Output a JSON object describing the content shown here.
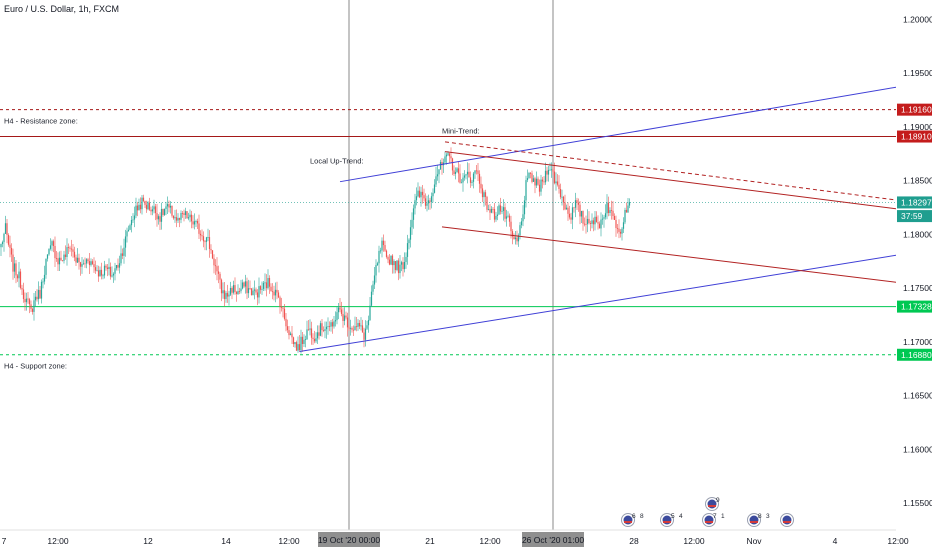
{
  "title": "Euro / U.S. Dollar, 1h, FXCM",
  "currency": "USD",
  "colors": {
    "up": "#26a69a",
    "down": "#ef5350",
    "blue": "#3f3fd6",
    "red": "#b22222",
    "green": "#00c853",
    "hline_red": "#a51818",
    "tag_red": "#c41c1c",
    "tag_teal": "#1f9e8f"
  },
  "chart_data": {
    "type": "candlestick",
    "symbol": "EURUSD",
    "timeframe": "1h",
    "ylim": [
      1.1525,
      1.2018
    ],
    "y_ticks": [
      1.2,
      1.195,
      1.19,
      1.185,
      1.18,
      1.175,
      1.17,
      1.165,
      1.16,
      1.155
    ],
    "y_tick_labels": [
      "1.20000",
      "1.19500",
      "1.19000",
      "1.18500",
      "1.18000",
      "1.17500",
      "1.17000",
      "1.16500",
      "1.16000",
      "1.15500"
    ],
    "x_ticks": [
      {
        "label": "7",
        "bar": 2
      },
      {
        "label": "12:00",
        "bar": 38
      },
      {
        "label": "12",
        "bar": 98
      },
      {
        "label": "14",
        "bar": 150
      },
      {
        "label": "12:00",
        "bar": 192
      },
      {
        "label": "21",
        "bar": 286
      },
      {
        "label": "12:00",
        "bar": 326
      },
      {
        "label": "28",
        "bar": 422
      },
      {
        "label": "12:00",
        "bar": 462
      },
      {
        "label": "Nov",
        "bar": 502
      },
      {
        "label": "4",
        "bar": 556
      },
      {
        "label": "12:00",
        "bar": 598
      }
    ],
    "x_highlight": [
      {
        "label": "19 Oct '20  00:00",
        "bar": 232
      },
      {
        "label": "26 Oct '20  01:00",
        "bar": 368
      }
    ],
    "anchors": [
      [
        0,
        1.179
      ],
      [
        3,
        1.1805
      ],
      [
        5,
        1.179
      ],
      [
        8,
        1.177
      ],
      [
        12,
        1.176
      ],
      [
        15,
        1.1745
      ],
      [
        18,
        1.1735
      ],
      [
        20,
        1.1728
      ],
      [
        23,
        1.1742
      ],
      [
        26,
        1.1745
      ],
      [
        30,
        1.1775
      ],
      [
        34,
        1.179
      ],
      [
        38,
        1.1776
      ],
      [
        42,
        1.1778
      ],
      [
        46,
        1.179
      ],
      [
        50,
        1.1776
      ],
      [
        54,
        1.177
      ],
      [
        58,
        1.1778
      ],
      [
        62,
        1.177
      ],
      [
        66,
        1.1764
      ],
      [
        70,
        1.1768
      ],
      [
        74,
        1.1762
      ],
      [
        78,
        1.1772
      ],
      [
        82,
        1.179
      ],
      [
        86,
        1.181
      ],
      [
        90,
        1.1823
      ],
      [
        94,
        1.183
      ],
      [
        98,
        1.1826
      ],
      [
        102,
        1.1823
      ],
      [
        106,
        1.1816
      ],
      [
        110,
        1.1825
      ],
      [
        114,
        1.182
      ],
      [
        118,
        1.1812
      ],
      [
        122,
        1.1818
      ],
      [
        126,
        1.1814
      ],
      [
        130,
        1.1808
      ],
      [
        134,
        1.18
      ],
      [
        138,
        1.1794
      ],
      [
        141,
        1.178
      ],
      [
        144,
        1.1764
      ],
      [
        147,
        1.1748
      ],
      [
        150,
        1.1742
      ],
      [
        154,
        1.175
      ],
      [
        158,
        1.1746
      ],
      [
        162,
        1.1752
      ],
      [
        166,
        1.1748
      ],
      [
        170,
        1.1745
      ],
      [
        174,
        1.175
      ],
      [
        178,
        1.1755
      ],
      [
        182,
        1.1748
      ],
      [
        186,
        1.1738
      ],
      [
        189,
        1.1722
      ],
      [
        192,
        1.171
      ],
      [
        195,
        1.17
      ],
      [
        198,
        1.1694
      ],
      [
        201,
        1.1702
      ],
      [
        205,
        1.1712
      ],
      [
        209,
        1.1706
      ],
      [
        213,
        1.1712
      ],
      [
        217,
        1.1716
      ],
      [
        221,
        1.1712
      ],
      [
        224,
        1.173
      ],
      [
        227,
        1.1726
      ],
      [
        230,
        1.172
      ],
      [
        233,
        1.1715
      ],
      [
        236,
        1.1713
      ],
      [
        239,
        1.1714
      ],
      [
        242,
        1.1706
      ],
      [
        245,
        1.172
      ],
      [
        248,
        1.1752
      ],
      [
        251,
        1.1775
      ],
      [
        254,
        1.179
      ],
      [
        257,
        1.1775
      ],
      [
        260,
        1.1778
      ],
      [
        263,
        1.1772
      ],
      [
        266,
        1.1768
      ],
      [
        269,
        1.1775
      ],
      [
        272,
        1.18
      ],
      [
        275,
        1.1825
      ],
      [
        278,
        1.1836
      ],
      [
        281,
        1.1836
      ],
      [
        284,
        1.1828
      ],
      [
        287,
        1.1838
      ],
      [
        290,
        1.1856
      ],
      [
        293,
        1.1862
      ],
      [
        296,
        1.1868
      ],
      [
        299,
        1.1872
      ],
      [
        302,
        1.186
      ],
      [
        305,
        1.1855
      ],
      [
        308,
        1.185
      ],
      [
        311,
        1.1855
      ],
      [
        314,
        1.1852
      ],
      [
        317,
        1.186
      ],
      [
        320,
        1.1845
      ],
      [
        323,
        1.183
      ],
      [
        326,
        1.1822
      ],
      [
        329,
        1.1818
      ],
      [
        332,
        1.1825
      ],
      [
        335,
        1.182
      ],
      [
        338,
        1.1812
      ],
      [
        341,
        1.1796
      ],
      [
        344,
        1.1792
      ],
      [
        347,
        1.1812
      ],
      [
        350,
        1.1845
      ],
      [
        353,
        1.1855
      ],
      [
        356,
        1.1848
      ],
      [
        359,
        1.1843
      ],
      [
        362,
        1.1852
      ],
      [
        365,
        1.1865
      ],
      [
        368,
        1.1855
      ],
      [
        371,
        1.1845
      ],
      [
        374,
        1.1835
      ],
      [
        377,
        1.1823
      ],
      [
        380,
        1.1818
      ],
      [
        383,
        1.1828
      ],
      [
        386,
        1.182
      ],
      [
        389,
        1.181
      ],
      [
        392,
        1.1815
      ],
      [
        395,
        1.1813
      ],
      [
        398,
        1.1808
      ],
      [
        401,
        1.1815
      ],
      [
        404,
        1.1828
      ],
      [
        407,
        1.1818
      ],
      [
        410,
        1.181
      ],
      [
        413,
        1.1805
      ],
      [
        416,
        1.1822
      ],
      [
        419,
        1.183
      ]
    ],
    "drawings": [
      {
        "name": "local-up-trend-top",
        "color": "blue",
        "from": [
          226,
          1.1849
        ],
        "to": [
          652,
          1.195
        ],
        "width": 1
      },
      {
        "name": "local-up-trend-bottom",
        "color": "blue",
        "from": [
          199,
          1.1691
        ],
        "to": [
          652,
          1.1793
        ],
        "width": 1
      },
      {
        "name": "mini-trend-top",
        "color": "red",
        "from": [
          296,
          1.1877
        ],
        "to": [
          652,
          1.1814
        ],
        "width": 1
      },
      {
        "name": "mini-trend-dashed",
        "color": "red",
        "from": [
          296,
          1.1886
        ],
        "to": [
          652,
          1.1822
        ],
        "width": 1,
        "dash": true
      },
      {
        "name": "mini-trend-bottom",
        "color": "red",
        "from": [
          294,
          1.1807
        ],
        "to": [
          652,
          1.1746
        ],
        "width": 1
      }
    ],
    "hlines": [
      {
        "name": "h4-resistance-dashed",
        "value": 1.1916,
        "color": "hline_red",
        "dash": true
      },
      {
        "name": "h4-resistance-solid",
        "value": 1.1891,
        "color": "hline_red",
        "dash": false
      },
      {
        "name": "current-price-line",
        "value": 1.18297,
        "color": "tag_teal",
        "dash": true,
        "thin": true
      },
      {
        "name": "h4-support-solid",
        "value": 1.17328,
        "color": "green",
        "dash": false
      },
      {
        "name": "h4-support-dashed",
        "value": 1.1688,
        "color": "green",
        "dash": true
      }
    ],
    "vlines": [
      232,
      368
    ],
    "annotations": [
      {
        "name": "h4-resistance-label",
        "text": "H4 - Resistance zone:",
        "bar": 0,
        "y": 1.1903
      },
      {
        "name": "h4-support-label",
        "text": "H4 - Support zone:",
        "bar": 0,
        "y": 1.1675
      },
      {
        "name": "local-up-trend-label",
        "text": "Local Up-Trend:",
        "bar": 204,
        "y": 1.1866
      },
      {
        "name": "mini-trend-label",
        "text": "Mini-Trend:",
        "bar": 292,
        "y": 1.1894
      }
    ],
    "price_tags": [
      {
        "name": "tag-1.19160",
        "text": "1.19160",
        "value": 1.1916,
        "color": "tag_red"
      },
      {
        "name": "tag-1.18910",
        "text": "1.18910",
        "value": 1.1891,
        "color": "tag_red"
      },
      {
        "name": "tag-1.18297",
        "text": "1.18297",
        "value": 1.18297,
        "color": "tag_teal"
      },
      {
        "name": "tag-countdown",
        "text": "37:59",
        "value": 1.1817,
        "color": "tag_teal"
      },
      {
        "name": "tag-1.17328",
        "text": "1.17328",
        "value": 1.17328,
        "color": "green"
      },
      {
        "name": "tag-1.16880",
        "text": "1.16880",
        "value": 1.1688,
        "color": "green"
      }
    ],
    "event_icons": [
      {
        "name": "event-flag-1",
        "bar": 418,
        "text": "6",
        "extra": "8"
      },
      {
        "name": "event-flag-2",
        "bar": 444,
        "text": "5",
        "extra": "4"
      },
      {
        "name": "event-flag-3",
        "bar": 472,
        "text": "7",
        "extra": "1"
      },
      {
        "name": "event-flag-4",
        "bar": 474,
        "text": "9",
        "extra": "",
        "high": true
      },
      {
        "name": "event-flag-5",
        "bar": 502,
        "text": "8",
        "extra": "3"
      },
      {
        "name": "event-flag-6",
        "bar": 524,
        "text": "",
        "extra": ""
      }
    ]
  }
}
